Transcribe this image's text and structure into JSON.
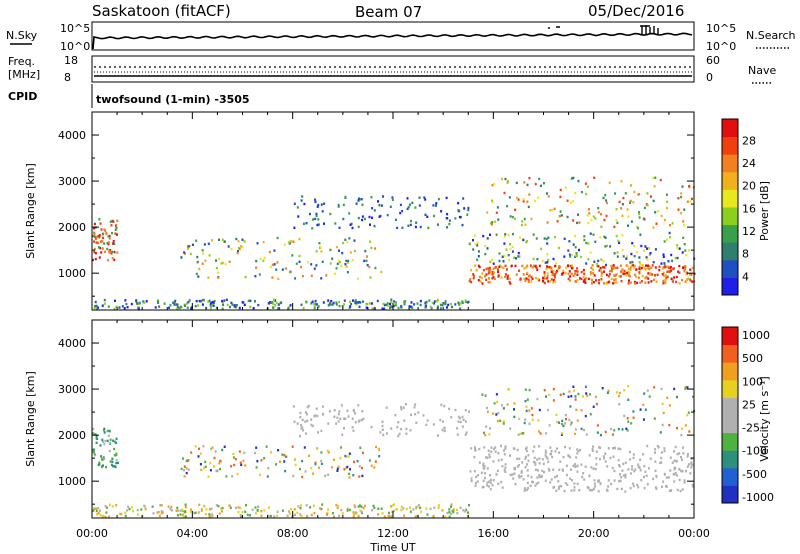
{
  "header": {
    "station": "Saskatoon (fitACF)",
    "beam": "Beam 07",
    "date": "05/Dec/2016"
  },
  "summary_panel": {
    "nsky_label": "N.Sky",
    "nsearch_label": "N.Search",
    "nave_label": "Nave",
    "freq_label_1": "Freq.",
    "freq_label_2": "[MHz]",
    "cpid_label": "CPID",
    "cpid_text": "twofsound (1-min) -3505",
    "noise_ticks": [
      "10^5",
      "10^0"
    ],
    "freq_ticks": [
      "18",
      "8"
    ],
    "nave_ticks": [
      "60",
      "0"
    ]
  },
  "chart_data": [
    {
      "type": "heatmap",
      "title": "",
      "xlabel": "",
      "ylabel": "Slant Range [km]",
      "x_ticks": [
        "00:00",
        "04:00",
        "08:00",
        "12:00",
        "16:00",
        "20:00",
        "00:00"
      ],
      "y_ticks": [
        1000,
        2000,
        3000,
        4000
      ],
      "xlim_hours": [
        0,
        24
      ],
      "ylim_km": [
        200,
        4500
      ],
      "colorbar": {
        "label": "Power [dB]",
        "ticks": [
          "4",
          "8",
          "12",
          "16",
          "20",
          "24",
          "28"
        ],
        "colors": [
          "#1f1fe8",
          "#1f4fc0",
          "#2f7f6f",
          "#3a9f4a",
          "#8ccf1f",
          "#e8e81f",
          "#f0b020",
          "#f08020",
          "#f04010",
          "#e01010"
        ]
      }
    },
    {
      "type": "heatmap",
      "title": "",
      "xlabel": "Time UT",
      "ylabel": "Slant Range [km]",
      "x_ticks": [
        "00:00",
        "04:00",
        "08:00",
        "12:00",
        "16:00",
        "20:00",
        "00:00"
      ],
      "y_ticks": [
        1000,
        2000,
        3000,
        4000
      ],
      "xlim_hours": [
        0,
        24
      ],
      "ylim_km": [
        200,
        4500
      ],
      "colorbar": {
        "label": "Velocity [m s⁻¹]",
        "ticks": [
          "1000",
          "500",
          "100",
          "25",
          "-25",
          "-100",
          "-500",
          "-1000"
        ],
        "colors": [
          "#2030c0",
          "#2060d0",
          "#2f8f7f",
          "#50b040",
          "#b0b0b0",
          "#b0b0b0",
          "#e8d020",
          "#f0a020",
          "#f06020",
          "#e01010"
        ]
      }
    }
  ],
  "colors": {
    "ground_gray": "#bdbdbd",
    "axis": "#000000"
  }
}
